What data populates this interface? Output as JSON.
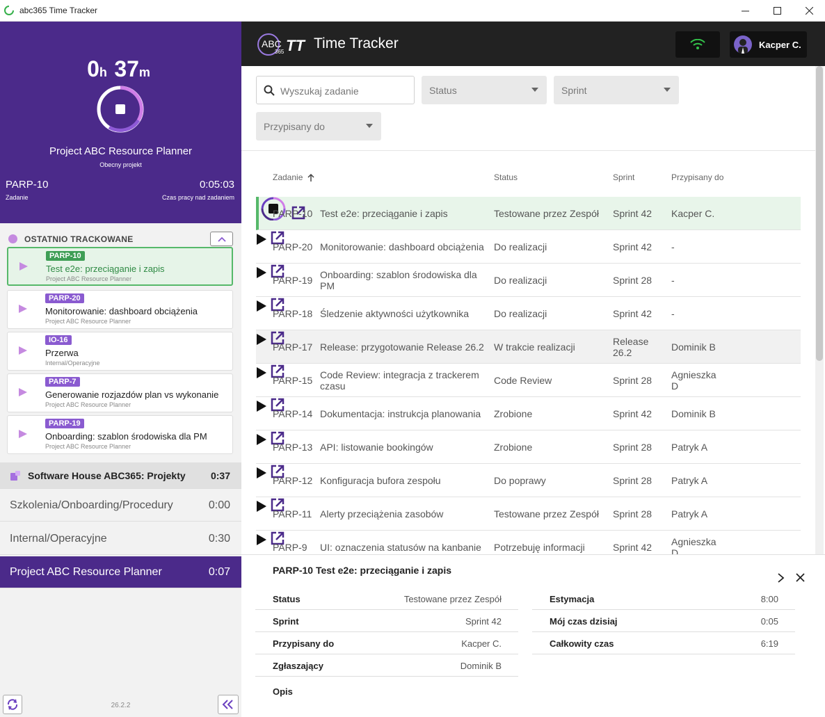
{
  "window": {
    "title": "abc365 Time Tracker"
  },
  "timer": {
    "hours": "0",
    "hours_unit": "h",
    "minutes": "37",
    "minutes_unit": "m",
    "project_name": "Project ABC Resource Planner",
    "project_sub": "Obecny projekt",
    "task_id": "PARP-10",
    "task_label": "Zadanie",
    "task_time": "0:05:03",
    "task_time_label": "Czas pracy nad zadaniem"
  },
  "recent": {
    "title": "OSTATNIO TRACKOWANE",
    "items": [
      {
        "badge": "PARP-10",
        "name": "Test e2e: przeciąganie i zapis",
        "project": "Project ABC Resource Planner"
      },
      {
        "badge": "PARP-20",
        "name": "Monitorowanie: dashboard obciążenia",
        "project": "Project ABC Resource Planner"
      },
      {
        "badge": "IO-16",
        "name": "Przerwa",
        "project": "Internal/Operacyjne"
      },
      {
        "badge": "PARP-7",
        "name": "Generowanie rozjazdów plan vs wykonanie",
        "project": "Project ABC Resource Planner"
      },
      {
        "badge": "PARP-19",
        "name": "Onboarding: szablon środowiska dla PM",
        "project": "Project ABC Resource Planner"
      }
    ]
  },
  "groups": [
    {
      "label": "Software House ABC365: Projekty",
      "time": "0:37"
    },
    {
      "label": "Szkolenia/Onboarding/Procedury",
      "time": "0:00"
    },
    {
      "label": "Internal/Operacyjne",
      "time": "0:30"
    },
    {
      "label": "Project ABC Resource Planner",
      "time": "0:07"
    }
  ],
  "version": "26.2.2",
  "header": {
    "logo_text": "ABC",
    "logo_sub": "365",
    "logo_tt": "TT",
    "title": "Time Tracker",
    "user": "Kacper C."
  },
  "filters": {
    "search_placeholder": "Wyszukaj zadanie",
    "status": "Status",
    "sprint": "Sprint",
    "assignee": "Przypisany do"
  },
  "table": {
    "headers": {
      "task": "Zadanie",
      "status": "Status",
      "sprint": "Sprint",
      "assignee": "Przypisany do"
    },
    "rows": [
      {
        "id": "PARP-10",
        "name": "Test e2e: przeciąganie i zapis",
        "status": "Testowane przez Zespół",
        "sprint": "Sprint 42",
        "assignee": "Kacper C."
      },
      {
        "id": "PARP-20",
        "name": "Monitorowanie: dashboard obciążenia",
        "status": "Do realizacji",
        "sprint": "Sprint 42",
        "assignee": "-"
      },
      {
        "id": "PARP-19",
        "name": "Onboarding: szablon środowiska dla PM",
        "status": "Do realizacji",
        "sprint": "Sprint 28",
        "assignee": "-"
      },
      {
        "id": "PARP-18",
        "name": "Śledzenie aktywności użytkownika",
        "status": "Do realizacji",
        "sprint": "Sprint 42",
        "assignee": "-"
      },
      {
        "id": "PARP-17",
        "name": "Release: przygotowanie Release 26.2",
        "status": "W trakcie realizacji",
        "sprint": "Release 26.2",
        "assignee": "Dominik B"
      },
      {
        "id": "PARP-15",
        "name": "Code Review: integracja z trackerem czasu",
        "status": "Code Review",
        "sprint": "Sprint 28",
        "assignee": "Agnieszka D"
      },
      {
        "id": "PARP-14",
        "name": "Dokumentacja: instrukcja planowania",
        "status": "Zrobione",
        "sprint": "Sprint 42",
        "assignee": "Dominik B"
      },
      {
        "id": "PARP-13",
        "name": "API: listowanie bookingów",
        "status": "Zrobione",
        "sprint": "Sprint 28",
        "assignee": "Patryk A"
      },
      {
        "id": "PARP-12",
        "name": "Konfiguracja bufora zespołu",
        "status": "Do poprawy",
        "sprint": "Sprint 28",
        "assignee": "Patryk A"
      },
      {
        "id": "PARP-11",
        "name": "Alerty przeciążenia zasobów",
        "status": "Testowane przez Zespół",
        "sprint": "Sprint 28",
        "assignee": "Patryk A"
      },
      {
        "id": "PARP-9",
        "name": "UI: oznaczenia statusów na kanbanie",
        "status": "Potrzebuję informacji",
        "sprint": "Sprint 42",
        "assignee": "Agnieszka D"
      }
    ]
  },
  "details": {
    "title": "PARP-10 Test e2e: przeciąganie i zapis",
    "left": [
      {
        "key": "Status",
        "value": "Testowane przez Zespół"
      },
      {
        "key": "Sprint",
        "value": "Sprint 42"
      },
      {
        "key": "Przypisany do",
        "value": "Kacper C."
      },
      {
        "key": "Zgłaszający",
        "value": "Dominik B"
      }
    ],
    "right": [
      {
        "key": "Estymacja",
        "value": "8:00"
      },
      {
        "key": "Mój czas dzisiaj",
        "value": "0:05"
      },
      {
        "key": "Całkowity czas",
        "value": "6:19"
      }
    ],
    "description_label": "Opis"
  },
  "colors": {
    "purple": "#4b2a8a",
    "active_green": "#56b86a",
    "header_dark": "#222222"
  }
}
